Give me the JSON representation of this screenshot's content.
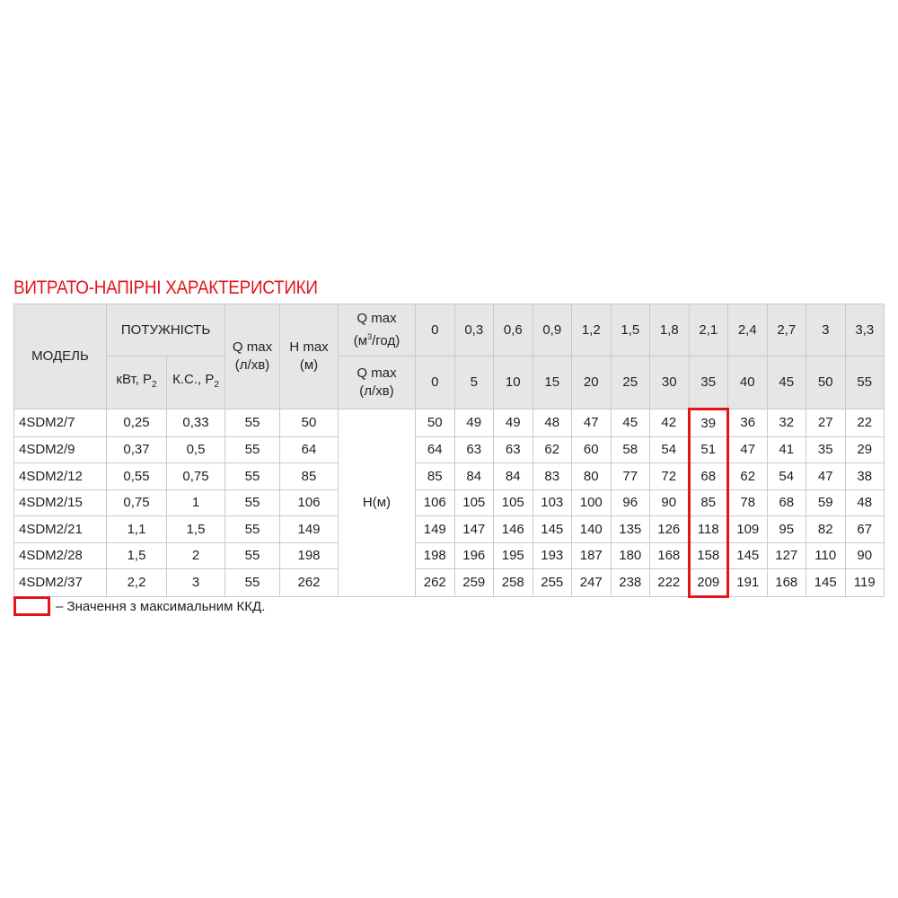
{
  "title": "ВИТРАТО-НАПІРНІ ХАРАКТЕРИСТИКИ",
  "colors": {
    "accent": "#e4141b",
    "header_bg": "#e6e6e7",
    "border": "#c9c9c9"
  },
  "header": {
    "model": "МОДЕЛЬ",
    "power": "ПОТУЖНІСТЬ",
    "kw": "кВт, P",
    "hp": "К.С., P",
    "power_sub": "2",
    "qmax": "Q max",
    "qmax_unit": "(л/хв)",
    "hmax": "H max",
    "hmax_unit": "(м)",
    "q_m3_label": "Q max",
    "q_m3_unit_pre": "(м",
    "q_m3_unit_sup": "3",
    "q_m3_unit_post": "/год)",
    "q_lmin_label": "Q max",
    "q_lmin_unit": "(л/хв)",
    "head_label": "H(м)"
  },
  "flow_m3h": [
    "0",
    "0,3",
    "0,6",
    "0,9",
    "1,2",
    "1,5",
    "1,8",
    "2,1",
    "2,4",
    "2,7",
    "3",
    "3,3"
  ],
  "flow_lmin": [
    "0",
    "5",
    "10",
    "15",
    "20",
    "25",
    "30",
    "35",
    "40",
    "45",
    "50",
    "55"
  ],
  "highlight_column": 7,
  "rows": [
    {
      "model": "4SDM2/7",
      "kw": "0,25",
      "hp": "0,33",
      "qmax": "55",
      "hmax": "50",
      "head": [
        "50",
        "49",
        "49",
        "48",
        "47",
        "45",
        "42",
        "39",
        "36",
        "32",
        "27",
        "22"
      ]
    },
    {
      "model": "4SDM2/9",
      "kw": "0,37",
      "hp": "0,5",
      "qmax": "55",
      "hmax": "64",
      "head": [
        "64",
        "63",
        "63",
        "62",
        "60",
        "58",
        "54",
        "51",
        "47",
        "41",
        "35",
        "29"
      ]
    },
    {
      "model": "4SDM2/12",
      "kw": "0,55",
      "hp": "0,75",
      "qmax": "55",
      "hmax": "85",
      "head": [
        "85",
        "84",
        "84",
        "83",
        "80",
        "77",
        "72",
        "68",
        "62",
        "54",
        "47",
        "38"
      ]
    },
    {
      "model": "4SDM2/15",
      "kw": "0,75",
      "hp": "1",
      "qmax": "55",
      "hmax": "106",
      "head": [
        "106",
        "105",
        "105",
        "103",
        "100",
        "96",
        "90",
        "85",
        "78",
        "68",
        "59",
        "48"
      ]
    },
    {
      "model": "4SDM2/21",
      "kw": "1,1",
      "hp": "1,5",
      "qmax": "55",
      "hmax": "149",
      "head": [
        "149",
        "147",
        "146",
        "145",
        "140",
        "135",
        "126",
        "118",
        "109",
        "95",
        "82",
        "67"
      ]
    },
    {
      "model": "4SDM2/28",
      "kw": "1,5",
      "hp": "2",
      "qmax": "55",
      "hmax": "198",
      "head": [
        "198",
        "196",
        "195",
        "193",
        "187",
        "180",
        "168",
        "158",
        "145",
        "127",
        "110",
        "90"
      ]
    },
    {
      "model": "4SDM2/37",
      "kw": "2,2",
      "hp": "3",
      "qmax": "55",
      "hmax": "262",
      "head": [
        "262",
        "259",
        "258",
        "255",
        "247",
        "238",
        "222",
        "209",
        "191",
        "168",
        "145",
        "119"
      ]
    }
  ],
  "legend": "– Значення з максимальним ККД."
}
